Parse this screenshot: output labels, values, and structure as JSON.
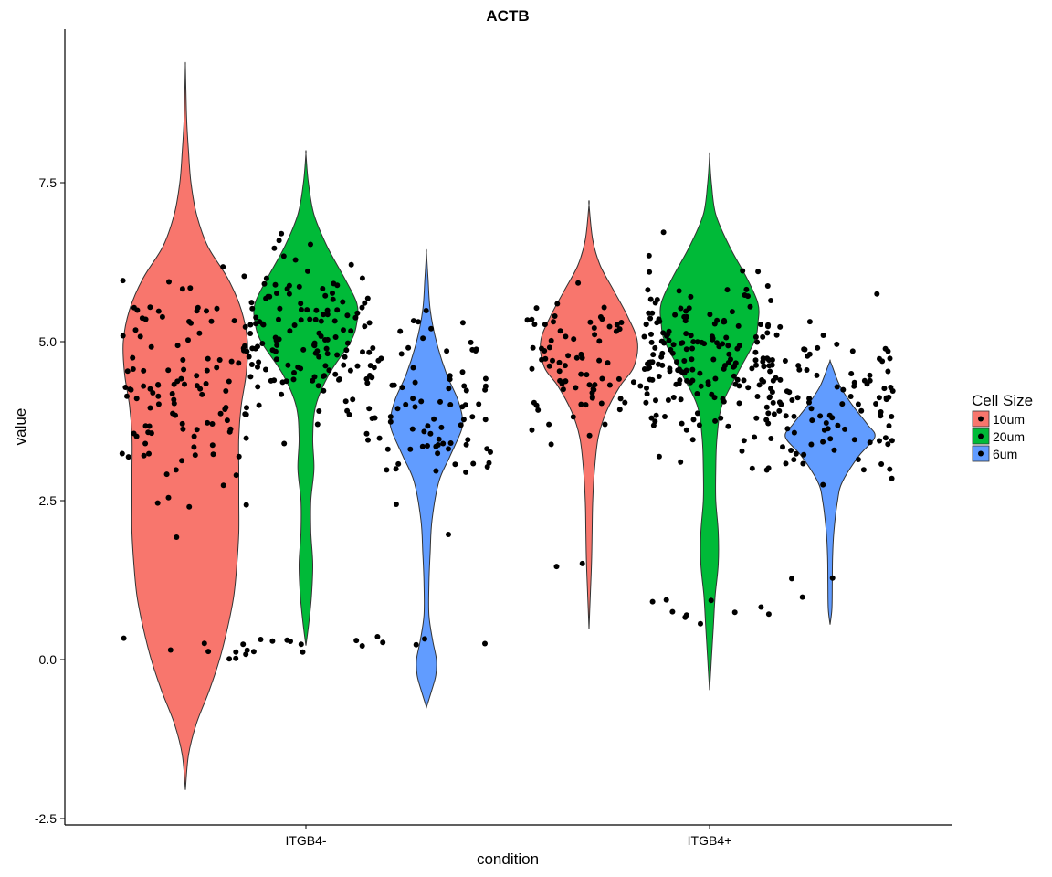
{
  "chart_data": {
    "type": "violin",
    "title": "ACTB",
    "xlabel": "condition",
    "ylabel": "value",
    "categories": [
      "ITGB4-",
      "ITGB4+"
    ],
    "ylim": [
      -2.6,
      10.3
    ],
    "yticks": [
      -2.5,
      0.0,
      2.5,
      5.0,
      7.5
    ],
    "ytick_labels": [
      "-2.5",
      "0.0",
      "2.5",
      "5.0",
      "7.5"
    ],
    "grid": false,
    "legend": {
      "title": "Cell Size",
      "placement": "right",
      "entries": [
        {
          "label": "10um",
          "color": "#F8766D"
        },
        {
          "label": "20um",
          "color": "#00BA38"
        },
        {
          "label": "6um",
          "color": "#619CFF"
        }
      ]
    },
    "series": [
      {
        "name": "10um",
        "color": "#F8766D"
      },
      {
        "name": "20um",
        "color": "#00BA38"
      },
      {
        "name": "6um",
        "color": "#619CFF"
      }
    ],
    "violins": [
      {
        "category": "ITGB4-",
        "series": "10um",
        "profile": [
          [
            -2.05,
            0.0
          ],
          [
            -1.5,
            0.05
          ],
          [
            -1.0,
            0.18
          ],
          [
            -0.5,
            0.38
          ],
          [
            0.0,
            0.55
          ],
          [
            0.5,
            0.68
          ],
          [
            1.0,
            0.78
          ],
          [
            1.5,
            0.83
          ],
          [
            2.0,
            0.86
          ],
          [
            2.5,
            0.86
          ],
          [
            3.0,
            0.86
          ],
          [
            3.5,
            0.86
          ],
          [
            4.0,
            0.9
          ],
          [
            4.5,
            0.98
          ],
          [
            5.0,
            1.0
          ],
          [
            5.5,
            0.9
          ],
          [
            6.0,
            0.68
          ],
          [
            6.5,
            0.36
          ],
          [
            7.0,
            0.18
          ],
          [
            7.5,
            0.09
          ],
          [
            8.0,
            0.05
          ],
          [
            8.5,
            0.02
          ],
          [
            9.0,
            0.008
          ],
          [
            9.35,
            0.0
          ]
        ]
      },
      {
        "category": "ITGB4-",
        "series": "20um",
        "profile": [
          [
            0.22,
            0.0
          ],
          [
            0.6,
            0.05
          ],
          [
            1.0,
            0.09
          ],
          [
            1.5,
            0.11
          ],
          [
            2.0,
            0.08
          ],
          [
            2.5,
            0.08
          ],
          [
            3.0,
            0.13
          ],
          [
            3.5,
            0.11
          ],
          [
            4.0,
            0.16
          ],
          [
            4.5,
            0.38
          ],
          [
            5.0,
            0.72
          ],
          [
            5.3,
            0.82
          ],
          [
            5.6,
            0.82
          ],
          [
            6.0,
            0.62
          ],
          [
            6.5,
            0.34
          ],
          [
            7.0,
            0.13
          ],
          [
            7.5,
            0.04
          ],
          [
            7.95,
            0.0
          ]
        ]
      },
      {
        "category": "ITGB4-",
        "series": "6um",
        "profile": [
          [
            -0.75,
            0.0
          ],
          [
            -0.5,
            0.08
          ],
          [
            -0.25,
            0.15
          ],
          [
            0.0,
            0.16
          ],
          [
            0.3,
            0.1
          ],
          [
            0.7,
            0.04
          ],
          [
            1.2,
            0.04
          ],
          [
            1.7,
            0.06
          ],
          [
            2.2,
            0.09
          ],
          [
            2.8,
            0.2
          ],
          [
            3.2,
            0.38
          ],
          [
            3.6,
            0.56
          ],
          [
            3.8,
            0.58
          ],
          [
            4.1,
            0.5
          ],
          [
            4.5,
            0.32
          ],
          [
            5.0,
            0.16
          ],
          [
            5.5,
            0.06
          ],
          [
            6.0,
            0.025
          ],
          [
            6.4,
            0.0
          ]
        ]
      },
      {
        "category": "ITGB4+",
        "series": "10um",
        "profile": [
          [
            0.48,
            0.0
          ],
          [
            1.0,
            0.02
          ],
          [
            1.5,
            0.04
          ],
          [
            2.0,
            0.05
          ],
          [
            2.5,
            0.06
          ],
          [
            3.0,
            0.09
          ],
          [
            3.5,
            0.15
          ],
          [
            3.9,
            0.28
          ],
          [
            4.3,
            0.5
          ],
          [
            4.6,
            0.72
          ],
          [
            5.0,
            0.78
          ],
          [
            5.4,
            0.62
          ],
          [
            5.8,
            0.4
          ],
          [
            6.2,
            0.18
          ],
          [
            6.6,
            0.06
          ],
          [
            7.15,
            0.0
          ]
        ]
      },
      {
        "category": "ITGB4+",
        "series": "20um",
        "profile": [
          [
            -0.48,
            0.0
          ],
          [
            0.0,
            0.03
          ],
          [
            0.5,
            0.06
          ],
          [
            1.0,
            0.09
          ],
          [
            1.5,
            0.14
          ],
          [
            2.0,
            0.14
          ],
          [
            2.5,
            0.1
          ],
          [
            3.0,
            0.1
          ],
          [
            3.5,
            0.12
          ],
          [
            4.0,
            0.2
          ],
          [
            4.5,
            0.45
          ],
          [
            5.0,
            0.72
          ],
          [
            5.3,
            0.78
          ],
          [
            5.6,
            0.78
          ],
          [
            6.0,
            0.6
          ],
          [
            6.5,
            0.32
          ],
          [
            7.0,
            0.1
          ],
          [
            7.5,
            0.03
          ],
          [
            7.92,
            0.0
          ]
        ]
      },
      {
        "category": "ITGB4+",
        "series": "6um",
        "profile": [
          [
            0.55,
            0.0
          ],
          [
            0.8,
            0.03
          ],
          [
            1.2,
            0.035
          ],
          [
            1.6,
            0.04
          ],
          [
            2.0,
            0.06
          ],
          [
            2.5,
            0.12
          ],
          [
            2.8,
            0.2
          ],
          [
            3.2,
            0.46
          ],
          [
            3.5,
            0.72
          ],
          [
            3.7,
            0.6
          ],
          [
            4.0,
            0.36
          ],
          [
            4.3,
            0.16
          ],
          [
            4.6,
            0.04
          ],
          [
            4.7,
            0.0
          ]
        ]
      }
    ],
    "points": [
      {
        "category": "ITGB4-",
        "series": "10um",
        "n": 120,
        "center": 4.2,
        "spread": 1.6,
        "min": 0.0,
        "max": 7.05
      },
      {
        "category": "ITGB4-",
        "series": "20um",
        "n": 150,
        "center": 5.1,
        "spread": 1.2,
        "min": 0.0,
        "max": 6.7
      },
      {
        "category": "ITGB4-",
        "series": "6um",
        "n": 95,
        "center": 3.8,
        "spread": 1.4,
        "min": 0.0,
        "max": 7.3
      },
      {
        "category": "ITGB4+",
        "series": "10um",
        "n": 90,
        "center": 4.6,
        "spread": 1.0,
        "min": 1.2,
        "max": 6.5
      },
      {
        "category": "ITGB4+",
        "series": "20um",
        "n": 190,
        "center": 4.8,
        "spread": 1.3,
        "min": 0.55,
        "max": 6.9
      },
      {
        "category": "ITGB4+",
        "series": "6um",
        "n": 110,
        "center": 4.1,
        "spread": 1.2,
        "min": 0.9,
        "max": 6.8
      }
    ]
  }
}
